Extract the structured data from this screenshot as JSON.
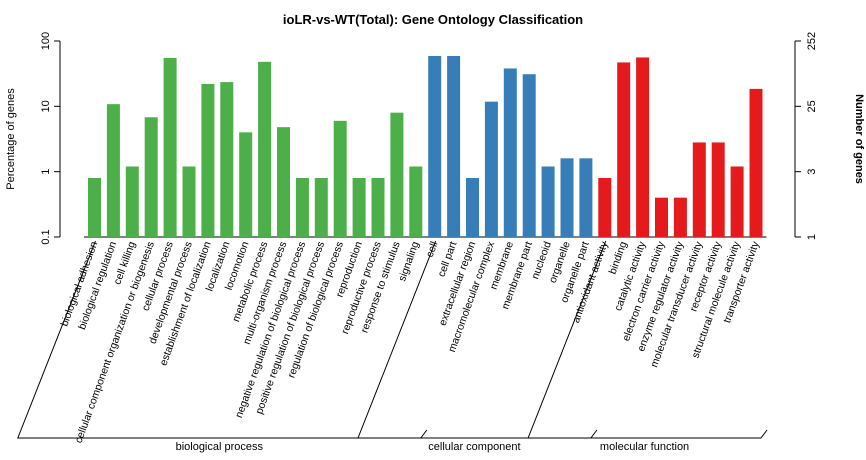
{
  "chart_data": {
    "type": "bar",
    "title": "ioLR-vs-WT(Total): Gene Ontology Classification",
    "ylabel_left": "Percentage of genes",
    "ylabel_right": "Number of genes",
    "y_scale": "log",
    "ylim": [
      0.1,
      100
    ],
    "left_ticks": [
      "0.1",
      "1",
      "10",
      "100"
    ],
    "right_ticks": [
      "1",
      "3",
      "25",
      "252"
    ],
    "grid": false,
    "legend": "none",
    "groups": [
      {
        "name": "biological process",
        "color": "#4daf4a",
        "categories": [
          "biological adhesion",
          "biological regulation",
          "cell killing",
          "cellular component organization or biogenesis",
          "cellular process",
          "developmental process",
          "establishment of localization",
          "localization",
          "locomotion",
          "metabolic process",
          "multi-organism process",
          "negative regulation of biological process",
          "positive regulation of biological process",
          "regulation of biological process",
          "reproduction",
          "reproductive process",
          "response to stimulus",
          "signaling"
        ],
        "values": [
          0.8,
          10.8,
          1.2,
          6.8,
          55,
          1.2,
          22,
          23.5,
          4.0,
          48,
          4.8,
          0.8,
          0.8,
          6.0,
          0.8,
          0.8,
          8.0,
          1.2
        ]
      },
      {
        "name": "cellular component",
        "color": "#377eb8",
        "categories": [
          "cell",
          "cell part",
          "extracellular region",
          "macromolecular complex",
          "membrane",
          "membrane part",
          "nucleoid",
          "organelle",
          "organelle part"
        ],
        "values": [
          59,
          59,
          0.8,
          11.8,
          38,
          31,
          1.2,
          1.6,
          1.6
        ]
      },
      {
        "name": "molecular function",
        "color": "#e41a1c",
        "categories": [
          "antioxidant activity",
          "binding",
          "catalytic activity",
          "electron carrier activity",
          "enzyme regulator activity",
          "molecular transducer activity",
          "receptor activity",
          "structural molecule activity",
          "transporter activity"
        ],
        "values": [
          0.8,
          47,
          56,
          0.4,
          0.4,
          2.8,
          2.8,
          1.2,
          18.5
        ]
      }
    ]
  }
}
